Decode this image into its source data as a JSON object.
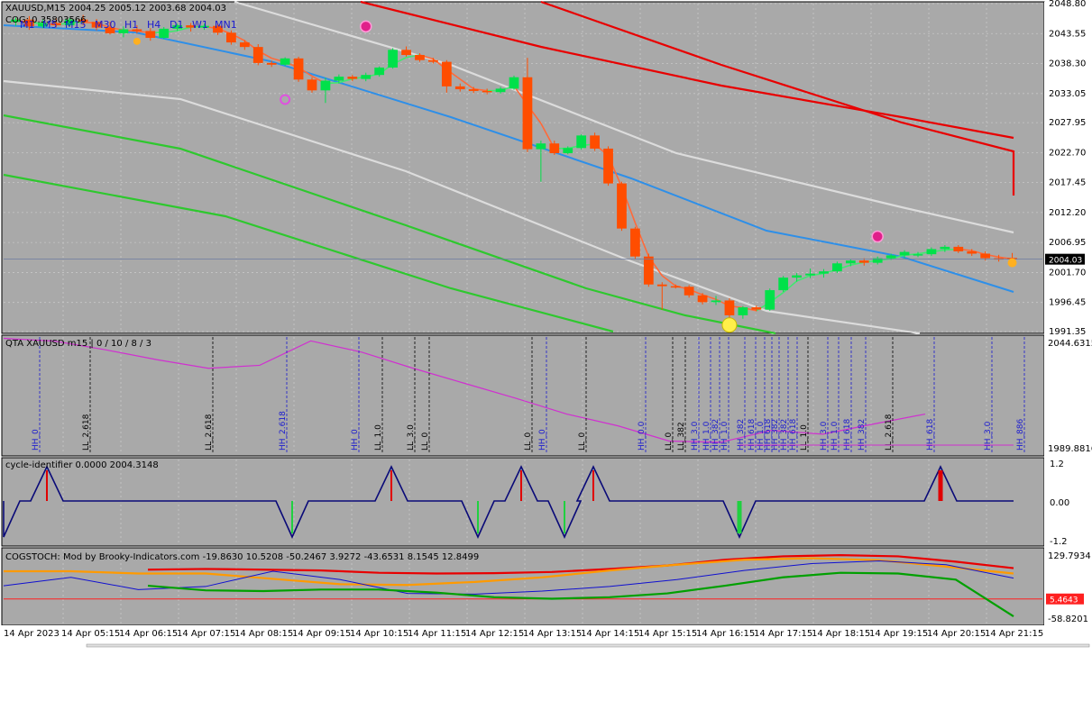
{
  "header": {
    "symbol_line": "XAUUSD,M15  2004.25 2005.12 2003.68 2004.03",
    "cog_line": "COG: 0.35803566",
    "timeframes": [
      "M1",
      "M5",
      "M15",
      "M30",
      "H1",
      "H4",
      "D1",
      "W1",
      "MN1"
    ]
  },
  "colors": {
    "chart_bg": "#a9a9a9",
    "bull": "#00e14a",
    "bear": "#ff4d00",
    "red_band": "#e80000",
    "white_band": "#dcdcdc",
    "blue_line": "#2e8fe8",
    "green_band": "#2ec82e",
    "magenta": "#d030d0",
    "navy": "#0a0a78"
  },
  "chart_data": [
    {
      "type": "candlestick",
      "panel": "main",
      "title": "XAUUSD,M15  2004.25 2005.12 2003.68 2004.03",
      "y_ticks": [
        "2048.80",
        "2043.55",
        "2038.30",
        "2033.05",
        "2027.95",
        "2022.70",
        "2017.45",
        "2012.20",
        "2006.95",
        "2001.70",
        "1996.45",
        "1991.35"
      ],
      "ylim": [
        1991.35,
        2048.8
      ],
      "current_price": "2004.03",
      "ohlc": [
        [
          2045.6,
          2046.4,
          2044.9,
          2046.0
        ],
        [
          2046.0,
          2046.6,
          2044.2,
          2044.8
        ],
        [
          2044.8,
          2046.0,
          2044.5,
          2045.4
        ],
        [
          2045.4,
          2046.3,
          2044.6,
          2045.0
        ],
        [
          2045.0,
          2046.3,
          2044.7,
          2046.0
        ],
        [
          2046.0,
          2046.8,
          2045.0,
          2045.6
        ],
        [
          2045.6,
          2046.1,
          2044.1,
          2044.6
        ],
        [
          2044.6,
          2045.6,
          2043.4,
          2043.6
        ],
        [
          2043.6,
          2044.8,
          2042.9,
          2044.3
        ],
        [
          2044.3,
          2045.0,
          2043.6,
          2044.0
        ],
        [
          2044.0,
          2044.5,
          2042.3,
          2042.8
        ],
        [
          2042.8,
          2044.7,
          2042.6,
          2044.4
        ],
        [
          2044.4,
          2045.3,
          2044.0,
          2045.0
        ],
        [
          2045.0,
          2045.4,
          2043.9,
          2044.6
        ],
        [
          2044.6,
          2045.3,
          2044.2,
          2044.9
        ],
        [
          2044.9,
          2045.2,
          2043.3,
          2043.7
        ],
        [
          2043.7,
          2044.1,
          2041.6,
          2042.0
        ],
        [
          2042.0,
          2042.4,
          2040.7,
          2041.2
        ],
        [
          2041.2,
          2041.7,
          2038.0,
          2038.4
        ],
        [
          2038.4,
          2038.8,
          2037.7,
          2038.1
        ],
        [
          2038.1,
          2039.4,
          2037.9,
          2039.2
        ],
        [
          2039.2,
          2039.5,
          2035.1,
          2035.5
        ],
        [
          2035.5,
          2035.9,
          2033.2,
          2033.6
        ],
        [
          2033.6,
          2035.8,
          2031.4,
          2035.3
        ],
        [
          2035.3,
          2036.4,
          2034.8,
          2036.0
        ],
        [
          2036.0,
          2036.3,
          2035.2,
          2035.6
        ],
        [
          2035.6,
          2036.7,
          2035.2,
          2036.3
        ],
        [
          2036.3,
          2037.8,
          2036.0,
          2037.6
        ],
        [
          2037.6,
          2041.0,
          2037.4,
          2040.7
        ],
        [
          2040.7,
          2041.3,
          2039.5,
          2039.8
        ],
        [
          2039.8,
          2040.1,
          2038.6,
          2038.9
        ],
        [
          2038.9,
          2039.3,
          2038.3,
          2038.6
        ],
        [
          2038.6,
          2038.9,
          2033.2,
          2034.3
        ],
        [
          2034.3,
          2034.8,
          2033.4,
          2033.8
        ],
        [
          2033.8,
          2034.2,
          2033.1,
          2033.5
        ],
        [
          2033.5,
          2033.9,
          2032.9,
          2033.3
        ],
        [
          2033.3,
          2034.2,
          2033.0,
          2033.9
        ],
        [
          2033.9,
          2036.2,
          2033.7,
          2035.9
        ],
        [
          2035.9,
          2039.3,
          2022.8,
          2023.3
        ],
        [
          2023.3,
          2024.8,
          2017.6,
          2024.3
        ],
        [
          2024.3,
          2024.8,
          2022.3,
          2022.6
        ],
        [
          2022.6,
          2023.8,
          2022.4,
          2023.5
        ],
        [
          2023.5,
          2025.9,
          2023.2,
          2025.7
        ],
        [
          2025.7,
          2026.2,
          2023.0,
          2023.4
        ],
        [
          2023.4,
          2023.8,
          2016.9,
          2017.3
        ],
        [
          2017.3,
          2017.6,
          2009.0,
          2009.4
        ],
        [
          2009.4,
          2009.7,
          2004.1,
          2004.5
        ],
        [
          2004.5,
          2005.0,
          1999.2,
          1999.6
        ],
        [
          1999.6,
          2000.0,
          1995.2,
          1999.3
        ],
        [
          1999.3,
          1999.6,
          1998.9,
          1999.2
        ],
        [
          1999.2,
          1999.5,
          1997.3,
          1997.7
        ],
        [
          1997.7,
          1998.1,
          1996.1,
          1996.5
        ],
        [
          1996.5,
          1997.6,
          1996.0,
          1996.8
        ],
        [
          1996.8,
          1997.2,
          1993.8,
          1994.2
        ],
        [
          1994.2,
          1995.8,
          1993.6,
          1995.6
        ],
        [
          1995.6,
          1995.9,
          1994.9,
          1995.2
        ],
        [
          1995.2,
          1998.9,
          1995.0,
          1998.6
        ],
        [
          1998.6,
          2001.1,
          1998.3,
          2000.8
        ],
        [
          2000.8,
          2001.6,
          2000.1,
          2001.2
        ],
        [
          2001.2,
          2002.4,
          2000.7,
          2001.5
        ],
        [
          2001.5,
          2002.3,
          2000.8,
          2001.9
        ],
        [
          2001.9,
          2003.6,
          2001.6,
          2003.3
        ],
        [
          2003.3,
          2004.0,
          2002.8,
          2003.8
        ],
        [
          2003.8,
          2004.2,
          2002.9,
          2003.4
        ],
        [
          2003.4,
          2004.5,
          2003.1,
          2004.2
        ],
        [
          2004.2,
          2005.0,
          2003.9,
          2004.7
        ],
        [
          2004.7,
          2005.6,
          2004.2,
          2005.3
        ],
        [
          2004.8,
          2005.3,
          2004.4,
          2004.9
        ],
        [
          2004.9,
          2006.1,
          2004.6,
          2005.8
        ],
        [
          2005.8,
          2006.5,
          2005.3,
          2006.2
        ],
        [
          2006.2,
          2006.5,
          2005.1,
          2005.4
        ],
        [
          2005.4,
          2005.8,
          2004.6,
          2005.0
        ],
        [
          2005.0,
          2005.4,
          2003.8,
          2004.2
        ],
        [
          2004.2,
          2004.8,
          2003.6,
          2004.0
        ],
        [
          2004.25,
          2005.12,
          2003.68,
          2004.03
        ]
      ]
    },
    {
      "type": "line",
      "panel": "qta",
      "title": "QTA XAUUSD m15 | 0 / 10 / 8 / 3",
      "y_ticks": [
        "2044.6315",
        "1989.8816"
      ],
      "ylim": [
        1989.8816,
        2044.6315
      ],
      "vertical_markers": [
        {
          "label": "HH_0",
          "kind": "HH"
        },
        {
          "label": "LL_2.618",
          "kind": "LL"
        },
        {
          "label": "LL_2.618",
          "kind": "LL"
        },
        {
          "label": "HH_2.618",
          "kind": "HH"
        },
        {
          "label": "HH_0",
          "kind": "HH"
        },
        {
          "label": "LL_1.0",
          "kind": "LL"
        },
        {
          "label": "LL_3.0",
          "kind": "LL"
        },
        {
          "label": "LL_0",
          "kind": "LL"
        },
        {
          "label": "LL_0",
          "kind": "LL"
        },
        {
          "label": "HH_0",
          "kind": "HH"
        },
        {
          "label": "LL_0",
          "kind": "LL"
        },
        {
          "label": "HH_0.0",
          "kind": "HH"
        },
        {
          "label": "LL_0",
          "kind": "LL"
        },
        {
          "label": "LL_382",
          "kind": "LL"
        },
        {
          "label": "HH_3.0",
          "kind": "HH"
        },
        {
          "label": "HH_1.0",
          "kind": "HH"
        },
        {
          "label": "HH_382",
          "kind": "HH"
        },
        {
          "label": "HH_1.0",
          "kind": "HH"
        },
        {
          "label": "HH_382",
          "kind": "HH"
        },
        {
          "label": "HH_618",
          "kind": "HH"
        },
        {
          "label": "HH_1.0",
          "kind": "HH"
        },
        {
          "label": "HH_618",
          "kind": "HH"
        },
        {
          "label": "HH_382",
          "kind": "HH"
        },
        {
          "label": "HH_382",
          "kind": "HH"
        },
        {
          "label": "HH_618",
          "kind": "HH"
        },
        {
          "label": "LL_1.0",
          "kind": "LL"
        },
        {
          "label": "HH_3.0",
          "kind": "HH"
        },
        {
          "label": "HH_1.0",
          "kind": "HH"
        },
        {
          "label": "HH_618",
          "kind": "HH"
        },
        {
          "label": "HH_382",
          "kind": "HH"
        },
        {
          "label": "LL_2.618",
          "kind": "LL"
        },
        {
          "label": "HH_618",
          "kind": "HH"
        },
        {
          "label": "HH_3.0",
          "kind": "HH"
        },
        {
          "label": "HH_886",
          "kind": "HH"
        }
      ],
      "line_points": [
        2044.0,
        2042.7,
        2038.6,
        2034.0,
        2030.0,
        2031.4,
        2042.8,
        2037.5,
        2030.0,
        2023.0,
        2016.0,
        2008.6,
        2003.1,
        1996.0,
        1995.4,
        2001.0,
        1999.2,
        2004.0,
        2008.6
      ]
    },
    {
      "type": "line",
      "panel": "cycle",
      "title": "cycle-identifier 0.0000 2004.3148",
      "y_ticks": [
        "1.2",
        "0.00",
        "-1.2"
      ],
      "ylim": [
        -1.2,
        1.2
      ],
      "peaks_up": [
        1,
        10,
        14,
        16,
        36
      ],
      "peaks_down": [
        0,
        8,
        13,
        15,
        22
      ]
    },
    {
      "type": "line",
      "panel": "cogstoch",
      "title": "COGSTOCH: Mod by Brooky-Indicators.com -19.8630 10.5208 -50.2467 3.9272 -43.6531 8.1545 12.8499",
      "y_ticks": [
        "129.7934",
        "-58.8201"
      ],
      "ylim": [
        -58.8201,
        129.7934
      ],
      "current_value": "5.4643",
      "series": [
        {
          "name": "",
          "color": "#e80000",
          "values": [
            82,
            84,
            82,
            80,
            74,
            72,
            73,
            76,
            84,
            93,
            108,
            117,
            120,
            117,
            103,
            86
          ]
        },
        {
          "name": "",
          "color": "#ff9a00",
          "values": [
            78,
            78,
            72,
            72,
            58,
            44,
            42,
            50,
            62,
            80,
            95,
            108,
            112,
            107,
            90,
            72
          ]
        },
        {
          "name": "",
          "color": "#1010d0",
          "values": [
            40,
            62,
            30,
            38,
            78,
            56,
            20,
            18,
            26,
            38,
            56,
            80,
            98,
            105,
            95,
            60
          ]
        },
        {
          "name": "",
          "color": "#00a000",
          "values": [
            40,
            28,
            26,
            30,
            30,
            22,
            10,
            6,
            10,
            20,
            40,
            62,
            74,
            72,
            56,
            -40
          ]
        }
      ]
    }
  ],
  "time_axis": [
    "14 Apr 2023",
    "14 Apr 05:15",
    "14 Apr 06:15",
    "14 Apr 07:15",
    "14 Apr 08:15",
    "14 Apr 09:15",
    "14 Apr 10:15",
    "14 Apr 11:15",
    "14 Apr 12:15",
    "14 Apr 13:15",
    "14 Apr 14:15",
    "14 Apr 15:15",
    "14 Apr 16:15",
    "14 Apr 17:15",
    "14 Apr 18:15",
    "14 Apr 19:15",
    "14 Apr 20:15",
    "14 Apr 21:15"
  ]
}
